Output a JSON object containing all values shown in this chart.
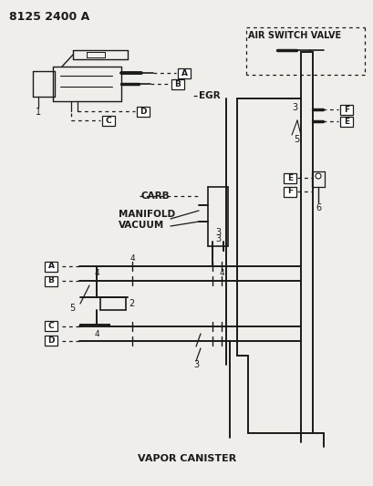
{
  "bg_color": "#f0eeea",
  "line_color": "#1a1a1a",
  "part_num": "8125 2400 A",
  "air_switch_valve": "AIR SWITCH VALVE",
  "egr_label": "EGR",
  "carb_label": "CARB",
  "manifold_vacuum_1": "MANIFOLD",
  "manifold_vacuum_2": "VACUUM",
  "vapor_canister": "VAPOR CANISTER"
}
